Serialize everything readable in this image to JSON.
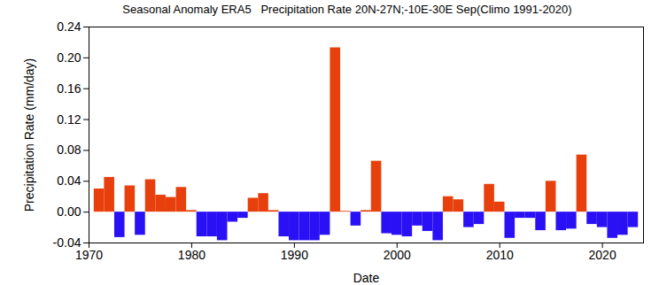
{
  "chart_data": {
    "type": "bar",
    "title": "Seasonal Anomaly ERA5   Precipitation Rate 20N-27N;-10E-30E Sep(Climo 1991-2020)",
    "x_label": "Date",
    "y_label": "Precipitation Rate (mm/day)",
    "x": [
      1971,
      1972,
      1973,
      1974,
      1975,
      1976,
      1977,
      1978,
      1979,
      1980,
      1981,
      1982,
      1983,
      1984,
      1985,
      1986,
      1987,
      1988,
      1989,
      1990,
      1991,
      1992,
      1993,
      1994,
      1995,
      1996,
      1997,
      1998,
      1999,
      2000,
      2001,
      2002,
      2003,
      2004,
      2005,
      2006,
      2007,
      2008,
      2009,
      2010,
      2011,
      2012,
      2013,
      2014,
      2015,
      2016,
      2017,
      2018,
      2019,
      2020,
      2021,
      2022,
      2023
    ],
    "values": [
      0.03,
      0.045,
      -0.033,
      0.034,
      -0.03,
      0.042,
      0.022,
      0.019,
      0.032,
      0.002,
      -0.032,
      -0.032,
      -0.037,
      -0.013,
      -0.008,
      0.018,
      0.024,
      0.002,
      -0.032,
      -0.037,
      -0.037,
      -0.037,
      -0.03,
      0.213,
      0.001,
      -0.018,
      0.002,
      0.066,
      -0.028,
      -0.03,
      -0.032,
      -0.018,
      -0.025,
      -0.037,
      0.02,
      0.016,
      -0.02,
      -0.016,
      0.036,
      0.013,
      -0.034,
      -0.008,
      -0.008,
      -0.024,
      0.04,
      -0.024,
      -0.022,
      0.074,
      -0.016,
      -0.02,
      -0.034,
      -0.03,
      -0.02
    ],
    "colors": [
      "#e8400c",
      "#e8400c",
      "#2a10f5",
      "#e8400c",
      "#2a10f5",
      "#e8400c",
      "#e8400c",
      "#e8400c",
      "#e8400c",
      "#e8400c",
      "#2a10f5",
      "#2a10f5",
      "#2a10f5",
      "#2a10f5",
      "#2a10f5",
      "#e8400c",
      "#e8400c",
      "#e8400c",
      "#2a10f5",
      "#2a10f5",
      "#2a10f5",
      "#2a10f5",
      "#2a10f5",
      "#e8400c",
      "#e8400c",
      "#2a10f5",
      "#e8400c",
      "#e8400c",
      "#2a10f5",
      "#2a10f5",
      "#2a10f5",
      "#2a10f5",
      "#2a10f5",
      "#2a10f5",
      "#e8400c",
      "#e8400c",
      "#2a10f5",
      "#2a10f5",
      "#e8400c",
      "#e8400c",
      "#2a10f5",
      "#2a10f5",
      "#2a10f5",
      "#2a10f5",
      "#e8400c",
      "#2a10f5",
      "#2a10f5",
      "#e8400c",
      "#2a10f5",
      "#2a10f5",
      "#2a10f5",
      "#2a10f5",
      "#2a10f5"
    ],
    "xlim": [
      1970,
      2024
    ],
    "xticks": [
      1970,
      1980,
      1990,
      2000,
      2010,
      2020
    ],
    "ylim": [
      -0.04,
      0.24
    ],
    "yticks": [
      {
        "value": -0.04,
        "label": "-0.04"
      },
      {
        "value": 0,
        "label": "0.00"
      },
      {
        "value": 0.04,
        "label": "0.04"
      },
      {
        "value": 0.08,
        "label": "0.08"
      },
      {
        "value": 0.12,
        "label": "0.12"
      },
      {
        "value": 0.16,
        "label": "0.16"
      },
      {
        "value": 0.2,
        "label": "0.20"
      },
      {
        "value": 0.24,
        "label": "0.24"
      }
    ],
    "grid": false
  }
}
